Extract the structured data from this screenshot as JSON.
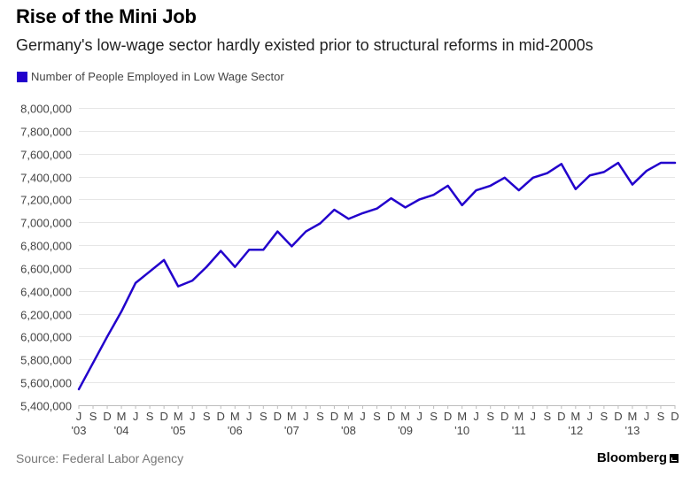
{
  "header": {
    "title": "Rise of the Mini Job",
    "subtitle": "Germany's low-wage sector hardly existed prior to structural reforms in mid-2000s"
  },
  "footer": {
    "source": "Source: Federal Labor Agency",
    "brand": "Bloomberg",
    "brand_icon": "chart-icon"
  },
  "colors": {
    "series": "#2200CC",
    "grid": "#E6E6E6",
    "axis_text": "#444444"
  },
  "chart_data": {
    "type": "line",
    "title": "Rise of the Mini Job",
    "subtitle": "Germany's low-wage sector hardly existed prior to structural reforms in mid-2000s",
    "xlabel": "",
    "ylabel": "",
    "ylim": [
      5400000,
      8000000
    ],
    "yticks": [
      5400000,
      5600000,
      5800000,
      6000000,
      6200000,
      6400000,
      6600000,
      6800000,
      7000000,
      7200000,
      7400000,
      7600000,
      7800000,
      8000000
    ],
    "ytick_labels": [
      "5,400,000",
      "5,600,000",
      "5,800,000",
      "6,000,000",
      "6,200,000",
      "6,400,000",
      "6,600,000",
      "6,800,000",
      "7,000,000",
      "7,200,000",
      "7,400,000",
      "7,600,000",
      "7,800,000",
      "8,000,000"
    ],
    "xtick_labels": [
      "J",
      "S",
      "D",
      "M",
      "J",
      "S",
      "D",
      "M",
      "J",
      "S",
      "D",
      "M",
      "J",
      "S",
      "D",
      "M",
      "J",
      "S",
      "D",
      "M",
      "J",
      "S",
      "D",
      "M",
      "J",
      "S",
      "D",
      "M",
      "J",
      "S",
      "D",
      "M",
      "J",
      "S",
      "D",
      "M",
      "J",
      "S",
      "D",
      "M",
      "J",
      "S",
      "D"
    ],
    "year_labels": [
      "'03",
      "'04",
      "'05",
      "'06",
      "'07",
      "'08",
      "'09",
      "'10",
      "'11",
      "'12",
      "'13"
    ],
    "year_label_tick_index": [
      0,
      3,
      7,
      11,
      15,
      19,
      23,
      27,
      31,
      35,
      39
    ],
    "grid": true,
    "legend_position": "top-left",
    "series": [
      {
        "name": "Number of People Employed in Low Wage Sector",
        "color": "#2200CC",
        "values": [
          5540000,
          5770000,
          6000000,
          6220000,
          6470000,
          6570000,
          6670000,
          6440000,
          6490000,
          6610000,
          6750000,
          6610000,
          6760000,
          6760000,
          6920000,
          6790000,
          6920000,
          6990000,
          7110000,
          7030000,
          7080000,
          7120000,
          7210000,
          7130000,
          7200000,
          7240000,
          7320000,
          7150000,
          7280000,
          7320000,
          7390000,
          7280000,
          7390000,
          7430000,
          7510000,
          7290000,
          7410000,
          7440000,
          7520000,
          7330000,
          7450000,
          7520000,
          7520000
        ]
      }
    ]
  }
}
